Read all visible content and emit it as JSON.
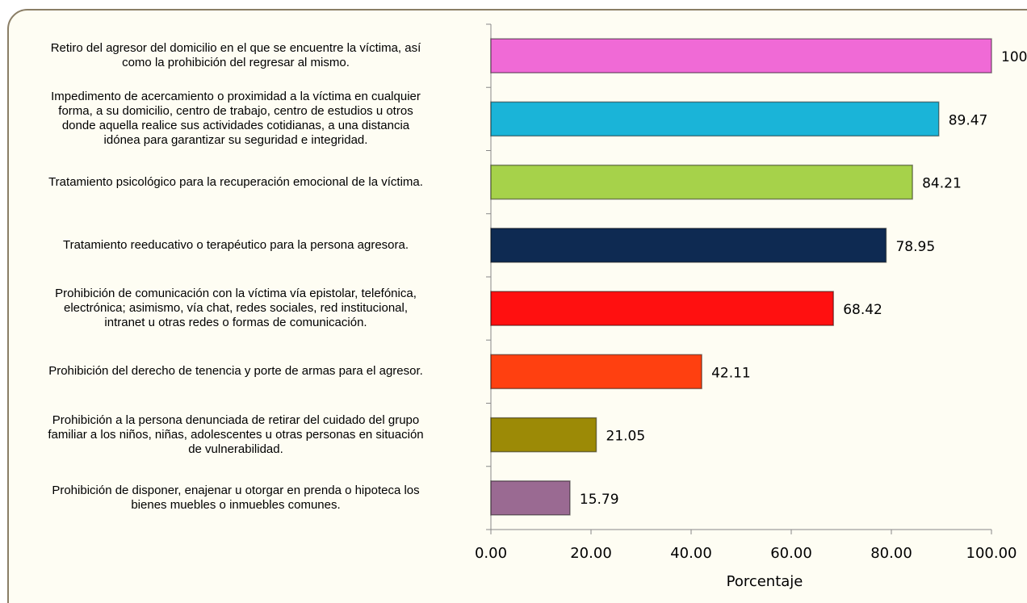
{
  "chart_data": {
    "type": "barh",
    "categories": [
      "Retiro del agresor del domicilio en el que se encuentre la víctima, así\ncomo la prohibición del regresar al mismo.",
      "Impedimento de acercamiento o proximidad a la víctima en cualquier\nforma, a su domicilio, centro de trabajo, centro de estudios u otros\ndonde aquella realice sus actividades cotidianas, a una distancia\nidónea para garantizar su seguridad e integridad.",
      "Tratamiento psicológico para la recuperación emocional de la víctima.",
      "Tratamiento reeducativo o terapéutico para la persona agresora.",
      "Prohibición de comunicación con la víctima vía epistolar, telefónica,\nelectrónica; asimismo, vía chat, redes sociales, red institucional,\nintranet u otras redes o formas de comunicación.",
      "Prohibición del derecho de tenencia y porte de armas para el agresor.",
      "Prohibición a la persona denunciada de retirar del cuidado del grupo\nfamiliar a los niños, niñas, adolescentes u otras personas en situación\nde vulnerabilidad.",
      "Prohibición de disponer, enajenar u otorgar en prenda o hipoteca los\nbienes muebles o inmuebles comunes."
    ],
    "values": [
      100,
      89.47,
      84.21,
      78.95,
      68.42,
      42.11,
      21.05,
      15.79
    ],
    "colors": [
      "#f06ad6",
      "#1ab4d8",
      "#a6d24a",
      "#0e2a52",
      "#ff1010",
      "#ff4010",
      "#9c8a06",
      "#9a6a92"
    ],
    "xlabel": "Porcentaje",
    "xlim": [
      0,
      100
    ],
    "xticks": [
      {
        "value": 0,
        "label": "0.00"
      },
      {
        "value": 20,
        "label": "20.00"
      },
      {
        "value": 40,
        "label": "40.00"
      },
      {
        "value": 60,
        "label": "60.00"
      },
      {
        "value": 80,
        "label": "80.00"
      },
      {
        "value": 100,
        "label": "100.00"
      }
    ]
  }
}
